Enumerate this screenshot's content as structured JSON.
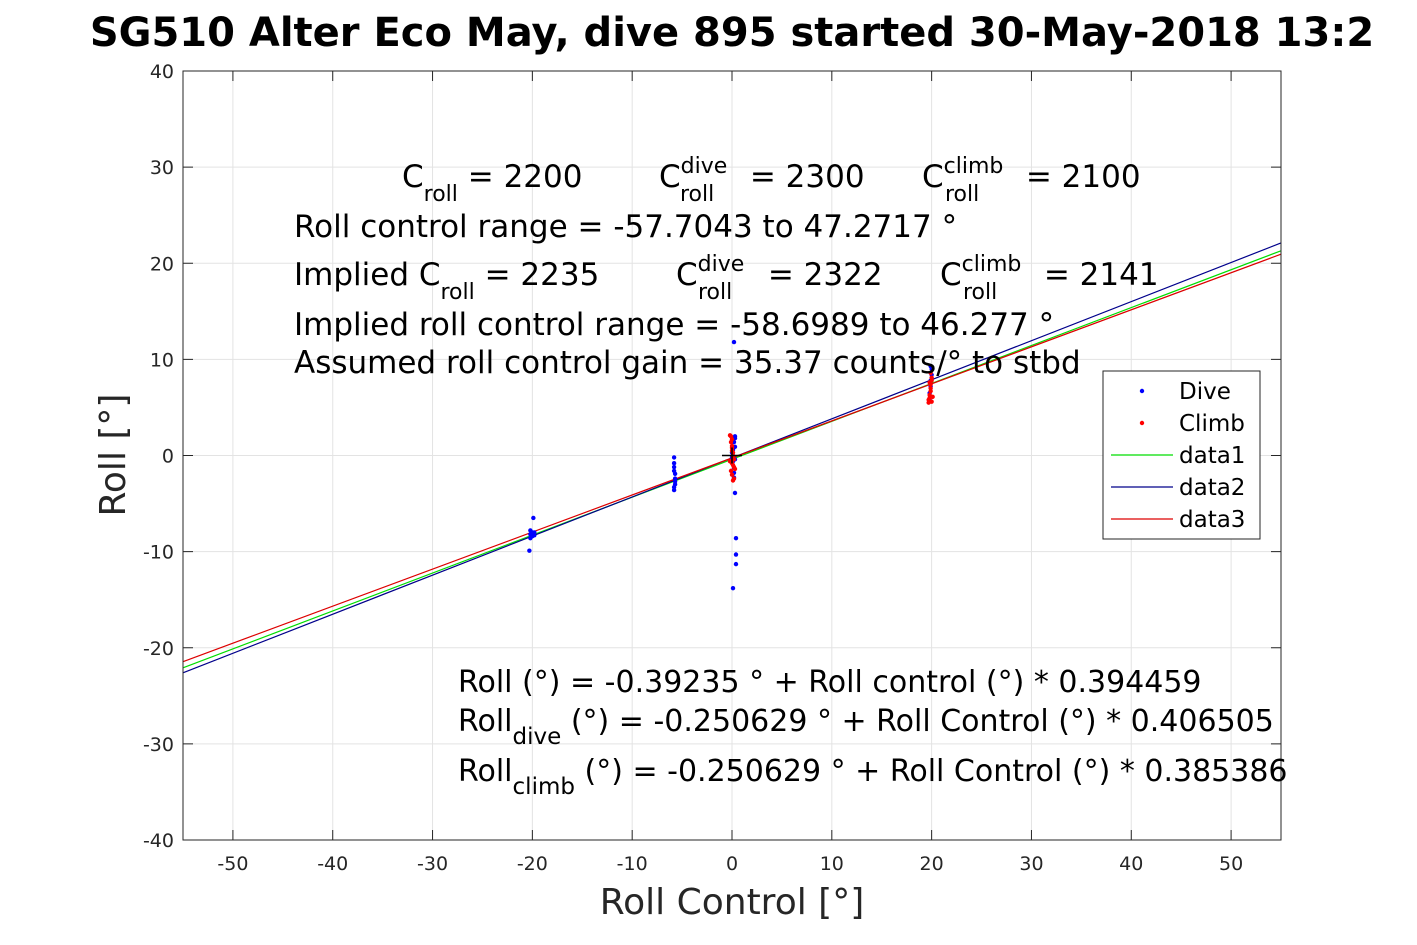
{
  "chart_data": {
    "type": "scatter",
    "title": "SG510 Alter Eco May, dive 895 started 30-May-2018 13:2",
    "xlabel": "Roll Control [°]",
    "ylabel": "Roll [°]",
    "xlim": [
      -55,
      55
    ],
    "ylim": [
      -40,
      40
    ],
    "x_ticks": [
      -50,
      -40,
      -30,
      -20,
      -10,
      0,
      10,
      20,
      30,
      40,
      50
    ],
    "y_ticks": [
      -40,
      -30,
      -20,
      -10,
      0,
      10,
      20,
      30,
      40
    ],
    "grid": true,
    "legend_location": "right",
    "colors": {
      "dive": "#0000ff",
      "climb": "#ff0000",
      "data1": "#00dd00",
      "data2": "#00008b",
      "data3": "#dd0000",
      "marker": "#000000"
    },
    "series": [
      {
        "name": "Dive",
        "kind": "points",
        "color": "#0000ff",
        "x": [
          -20.2,
          -20.2,
          -20.2,
          -20.0,
          -20.0,
          -19.9,
          -19.8,
          -19.8,
          -20.3,
          -5.8,
          -5.8,
          -5.8,
          -5.8,
          -5.7,
          -5.7,
          -5.7,
          -5.8,
          -5.8,
          -5.7,
          0.0,
          0.0,
          0.1,
          0.1,
          0.2,
          0.3,
          0.3,
          0.3,
          0.3,
          0.2,
          0.2,
          0.2,
          0.3,
          0.4,
          0.4,
          0.4,
          0.1,
          0.2,
          19.8,
          19.8,
          19.9,
          19.9,
          20.0,
          20.0,
          19.9
        ],
        "y": [
          -7.8,
          -8.2,
          -8.6,
          -8.0,
          -8.4,
          -6.5,
          -8.3,
          -8.0,
          -9.9,
          -0.2,
          -0.8,
          -1.2,
          -1.6,
          -1.9,
          -2.7,
          -3.0,
          -3.3,
          -3.6,
          -2.4,
          0.3,
          -0.2,
          -0.6,
          0.6,
          1.4,
          2.0,
          1.8,
          0.9,
          -0.4,
          -1.3,
          -1.8,
          -2.3,
          -3.9,
          -8.6,
          -10.3,
          -11.3,
          -13.8,
          11.8,
          5.8,
          6.5,
          7.2,
          7.8,
          8.4,
          9.0,
          9.3
        ]
      },
      {
        "name": "Climb",
        "kind": "points",
        "color": "#ff0000",
        "x": [
          -0.2,
          -0.1,
          -0.1,
          0.0,
          0.0,
          0.0,
          0.1,
          0.1,
          0.1,
          0.2,
          -0.2,
          0.0,
          0.1,
          0.2,
          0.3,
          -0.1,
          0.0,
          0.2,
          0.1,
          0.0,
          19.7,
          19.7,
          19.8,
          19.8,
          19.9,
          19.9,
          19.9,
          20.0,
          20.0,
          20.0,
          20.1,
          19.8,
          19.9
        ],
        "y": [
          2.1,
          2.0,
          1.4,
          1.0,
          0.8,
          0.5,
          0.3,
          0.0,
          -0.2,
          -0.4,
          -0.6,
          -0.8,
          -1.0,
          -1.2,
          -1.4,
          -1.6,
          -2.0,
          -2.4,
          -2.6,
          1.7,
          5.5,
          5.8,
          6.0,
          6.3,
          6.7,
          7.0,
          7.4,
          7.8,
          8.1,
          5.6,
          6.1,
          7.6,
          8.6
        ]
      },
      {
        "name": "data1",
        "kind": "line",
        "color": "#00dd00",
        "x": [
          -55,
          55
        ],
        "y": [
          -22.09,
          21.3
        ]
      },
      {
        "name": "data2",
        "kind": "line",
        "color": "#00008b",
        "x": [
          -55,
          55
        ],
        "y": [
          -22.61,
          22.11
        ]
      },
      {
        "name": "data3",
        "kind": "line",
        "color": "#dd0000",
        "x": [
          -55,
          55
        ],
        "y": [
          -21.45,
          20.94
        ]
      }
    ],
    "marker": {
      "x": 0,
      "y": 0,
      "symbol": "+"
    },
    "annotations": {
      "c_roll": {
        "base": "C",
        "sub": "roll",
        "value": " = 2200"
      },
      "c_roll_dive": {
        "base": "C",
        "sub": "roll",
        "sup": "dive",
        "value": " = 2300"
      },
      "c_roll_climb": {
        "base": "C",
        "sub": "roll",
        "sup": "climb",
        "value": " = 2100"
      },
      "roll_control_range": "Roll control range = -57.7043 to 47.2717 °",
      "implied_c_roll": {
        "prefix": "Implied C",
        "sub": "roll",
        "value": " = 2235"
      },
      "implied_c_roll_dive": {
        "base": "C",
        "sub": "roll",
        "sup": "dive",
        "value": " = 2322"
      },
      "implied_c_roll_climb": {
        "base": "C",
        "sub": "roll",
        "sup": "climb",
        "value": " = 2141"
      },
      "implied_range": "Implied roll control range = -58.6989 to 46.277 °",
      "assumed_gain": "Assumed roll control gain = 35.37 counts/° to stbd",
      "fit_all": "Roll (°) = -0.39235 ° + Roll control (°) * 0.394459",
      "fit_dive": {
        "base": "Roll",
        "sub": "dive",
        "rest": " (°) = -0.250629 ° + Roll Control (°) * 0.406505"
      },
      "fit_climb": {
        "base": "Roll",
        "sub": "climb",
        "rest": " (°) = -0.250629 ° + Roll Control (°) * 0.385386"
      }
    }
  }
}
